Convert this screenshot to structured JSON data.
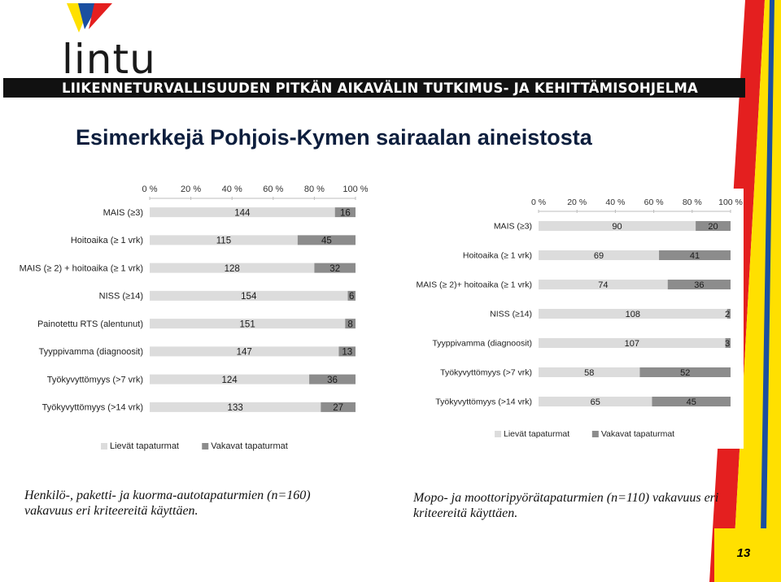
{
  "header": {
    "logo_text": "lintu",
    "banner_text": "LIIKENNETURVALLISUUDEN PITKÄN AIKAVÄLIN TUTKIMUS- JA KEHITTÄMISOHJELMA"
  },
  "title": "Esimerkkejä Pohjois-Kymen sairaalan aineistosta",
  "captions": {
    "left": [
      "Henkilö-, paketti- ja kuorma-autotapaturmien (n=160)",
      "vakavuus eri kriteereitä käyttäen."
    ],
    "right": [
      "Mopo- ja moottoripyörätapaturmien (n=110) vakavuus eri",
      "kriteereitä käyttäen."
    ]
  },
  "page_number": "13",
  "colors": {
    "light_series": "#dcdcdc",
    "dark_series": "#8c8c8c",
    "title": "#0d1e3d",
    "deco_red": "#e41f1f",
    "deco_yellow": "#ffe000",
    "deco_blue": "#1b4fa0"
  },
  "chart_data": [
    {
      "type": "bar",
      "orientation": "horizontal",
      "stacked": "percent",
      "categories": [
        "MAIS (≥3)",
        "Hoitoaika (≥ 1 vrk)",
        "MAIS (≥ 2) + hoitoaika (≥ 1 vrk)",
        "NISS (≥14)",
        "Painotettu RTS (alentunut)",
        "Tyyppivamma (diagnoosit)",
        "Työkyvyttömyys (>7 vrk)",
        "Työkyvyttömyys (>14 vrk)"
      ],
      "x_ticks": [
        "0 %",
        "20 %",
        "40 %",
        "60 %",
        "80 %",
        "100 %"
      ],
      "xlim": [
        0,
        100
      ],
      "series": [
        {
          "name": "Lievät tapaturmat",
          "values": [
            144,
            115,
            128,
            154,
            151,
            147,
            124,
            133
          ]
        },
        {
          "name": "Vakavat tapaturmat",
          "values": [
            16,
            45,
            32,
            6,
            8,
            13,
            36,
            27
          ]
        }
      ],
      "legend": "bottom"
    },
    {
      "type": "bar",
      "orientation": "horizontal",
      "stacked": "percent",
      "categories": [
        "MAIS (≥3)",
        "Hoitoaika (≥ 1 vrk)",
        "MAIS (≥ 2)+ hoitoaika (≥ 1 vrk)",
        "NISS (≥14)",
        "Tyyppivamma (diagnoosit)",
        "Työkyvyttömyys (>7 vrk)",
        "Työkyvyttömyys (>14 vrk)"
      ],
      "x_ticks": [
        "0 %",
        "20 %",
        "40 %",
        "60 %",
        "80 %",
        "100 %"
      ],
      "xlim": [
        0,
        100
      ],
      "series": [
        {
          "name": "Lievät tapaturmat",
          "values": [
            90,
            69,
            74,
            108,
            107,
            58,
            65
          ]
        },
        {
          "name": "Vakavat tapaturmat",
          "values": [
            20,
            41,
            36,
            2,
            3,
            52,
            45
          ]
        }
      ],
      "legend": "bottom"
    }
  ]
}
